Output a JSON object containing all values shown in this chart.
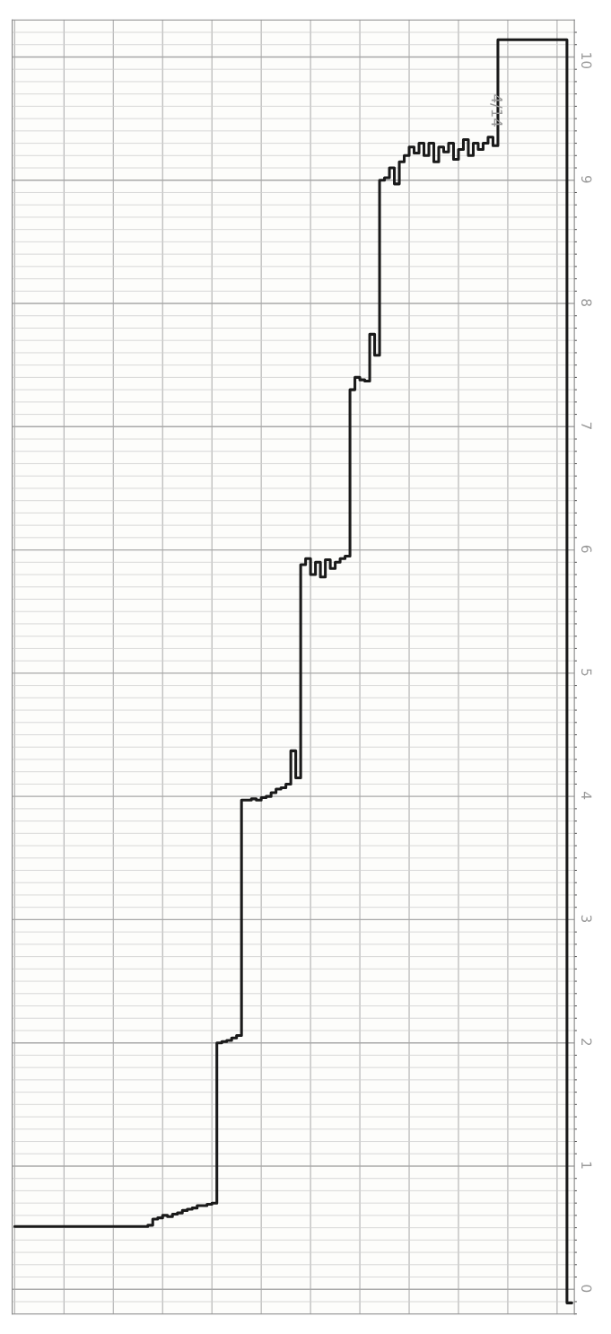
{
  "chart_data": {
    "type": "step",
    "categories": [
      null,
      null,
      null,
      null,
      null,
      null,
      null,
      null,
      null,
      null,
      null,
      null,
      null,
      null,
      null,
      null,
      null,
      null,
      null,
      null,
      null,
      null,
      null,
      null,
      null,
      null,
      null,
      null,
      null,
      null,
      null,
      null,
      null,
      null,
      null,
      null,
      null,
      null,
      null,
      null,
      null,
      null,
      null,
      null,
      null,
      null,
      null,
      null,
      null,
      null,
      null,
      null,
      null,
      null,
      null,
      null,
      null,
      null,
      null,
      null,
      null,
      null,
      null,
      null,
      null,
      null,
      null,
      null,
      null,
      null,
      null,
      null,
      null,
      null,
      null,
      null,
      null,
      null,
      null,
      null,
      null,
      null,
      null,
      null,
      null,
      null,
      null,
      null,
      null,
      null,
      null,
      null,
      null,
      null,
      null,
      null,
      null,
      null,
      null,
      null,
      null,
      null,
      null,
      null,
      null,
      null,
      null,
      null,
      null,
      null,
      null,
      null,
      null,
      null
    ],
    "series": [
      {
        "color": "#1a1a1a",
        "values": [
          0.51,
          0.51,
          0.51,
          0.51,
          0.51,
          0.51,
          0.51,
          0.51,
          0.51,
          0.51,
          0.51,
          0.51,
          0.51,
          0.51,
          0.51,
          0.51,
          0.51,
          0.51,
          0.51,
          0.51,
          0.51,
          0.51,
          0.51,
          0.51,
          0.51,
          0.51,
          0.51,
          0.52,
          0.57,
          0.58,
          0.6,
          0.59,
          0.61,
          0.62,
          0.64,
          0.65,
          0.66,
          0.68,
          0.68,
          0.69,
          0.7,
          2.0,
          2.01,
          2.02,
          2.04,
          2.06,
          3.97,
          3.97,
          3.98,
          3.97,
          3.99,
          4.0,
          4.03,
          4.06,
          4.07,
          4.1,
          4.37,
          4.15,
          5.88,
          5.93,
          5.8,
          5.9,
          5.78,
          5.92,
          5.85,
          5.9,
          5.93,
          5.95,
          7.3,
          7.4,
          7.38,
          7.37,
          7.75,
          7.58,
          9.0,
          9.02,
          9.1,
          8.97,
          9.15,
          9.2,
          9.27,
          9.22,
          9.3,
          9.2,
          9.3,
          9.15,
          9.27,
          9.23,
          9.3,
          9.17,
          9.25,
          9.33,
          9.2,
          9.3,
          9.25,
          9.3,
          9.35,
          9.28,
          10.14,
          10.14,
          10.14,
          10.14,
          10.14,
          10.14,
          10.14,
          10.14,
          10.14,
          10.14,
          10.14,
          10.14,
          10.14,
          10.14,
          -0.11,
          -0.11
        ]
      }
    ],
    "ylim": [
      -0.2,
      10.3
    ],
    "yticks": [
      0,
      1,
      2,
      3,
      4,
      5,
      6,
      7,
      8,
      9,
      10
    ],
    "tick_labels": "y",
    "grid": true,
    "legend": false,
    "annotations": [
      "4/14"
    ]
  }
}
